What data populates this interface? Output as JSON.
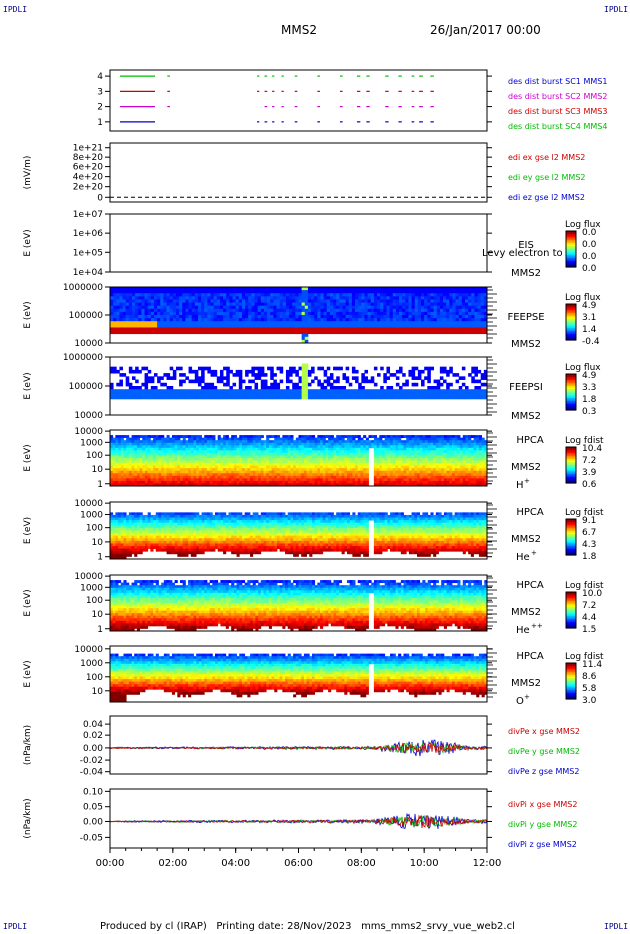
{
  "corner_label": "IPDLI",
  "header": {
    "mission": "MMS2",
    "date": "26/Jan/2017 00:00"
  },
  "footer": {
    "produced_by": "Produced by cl (IRAP)",
    "printing_date": "Printing date: 28/Nov/2023",
    "filename": "mms_mms2_srvy_vue_web2.cl"
  },
  "time_axis": [
    "00:00",
    "02:00",
    "04:00",
    "06:00",
    "08:00",
    "10:00",
    "12:00"
  ],
  "chart_data": [
    {
      "type": "scatter",
      "panel": "burst",
      "yticks": [
        "4",
        "3",
        "2",
        "1"
      ],
      "legend": [
        {
          "label": "des dist burst SC1 MMS1",
          "color": "#0000cc"
        },
        {
          "label": "des dist burst SC2 MMS2",
          "color": "#cc00cc"
        },
        {
          "label": "des dist burst SC3 MMS3",
          "color": "#cc0000"
        },
        {
          "label": "des dist burst SC4 MMS4",
          "color": "#00bb00"
        }
      ],
      "line_colors": [
        "#00bb00",
        "#cc0000",
        "#cc00cc",
        "#0000cc"
      ]
    },
    {
      "type": "line",
      "panel": "edi",
      "ylabel": "(mV/m)",
      "yticks": [
        "1e+21",
        "8e+20",
        "6e+20",
        "4e+20",
        "2e+20",
        "0"
      ],
      "legend": [
        {
          "label": "edi ex gse l2 MMS2",
          "color": "#cc0000"
        },
        {
          "label": "edi ey gse l2 MMS2",
          "color": "#00bb00"
        },
        {
          "label": "edi ez gse l2 MMS2",
          "color": "#0000cc"
        }
      ]
    },
    {
      "type": "heatmap",
      "panel": "eis",
      "ylabel": "E (eV)",
      "yticks": [
        "1e+07",
        "1e+06",
        "1e+05",
        "1e+04"
      ],
      "instrument": "EIS",
      "spacecraft": "MMS2",
      "overlay": "Levy electron to",
      "cbar_title": "Log flux",
      "cbar_ticks": [
        "0.0",
        "0.0",
        "0.0",
        "0.0"
      ]
    },
    {
      "type": "heatmap",
      "panel": "feepse",
      "ylabel": "E (eV)",
      "yticks": [
        "1000000",
        "100000",
        "10000"
      ],
      "instrument": "FEEPSE",
      "spacecraft": "MMS2",
      "cbar_title": "Log flux",
      "cbar_ticks": [
        "4.9",
        "3.1",
        "1.4",
        "-0.4"
      ]
    },
    {
      "type": "heatmap",
      "panel": "feepsi",
      "ylabel": "E (eV)",
      "yticks": [
        "1000000",
        "100000",
        "10000"
      ],
      "instrument": "FEEPSI",
      "spacecraft": "MMS2",
      "cbar_title": "Log flux",
      "cbar_ticks": [
        "4.9",
        "3.3",
        "1.8",
        "0.3"
      ]
    },
    {
      "type": "heatmap",
      "panel": "hpca_h",
      "ylabel": "E (eV)",
      "yticks": [
        "10000",
        "1000",
        "100",
        "10",
        "1"
      ],
      "instrument": "HPCA",
      "spacecraft": "MMS2",
      "species": "H",
      "charge": "+",
      "cbar_title": "Log fdist",
      "cbar_ticks": [
        "10.4",
        "7.2",
        "3.9",
        "0.6"
      ]
    },
    {
      "type": "heatmap",
      "panel": "hpca_he",
      "ylabel": "E (eV)",
      "yticks": [
        "10000",
        "1000",
        "100",
        "10",
        "1"
      ],
      "instrument": "HPCA",
      "spacecraft": "MMS2",
      "species": "He",
      "charge": "+",
      "cbar_title": "Log fdist",
      "cbar_ticks": [
        "9.1",
        "6.7",
        "4.3",
        "1.8"
      ]
    },
    {
      "type": "heatmap",
      "panel": "hpca_hepp",
      "ylabel": "E (eV)",
      "yticks": [
        "10000",
        "1000",
        "100",
        "10",
        "1"
      ],
      "instrument": "HPCA",
      "spacecraft": "MMS2",
      "species": "He",
      "charge": "++",
      "cbar_title": "Log fdist",
      "cbar_ticks": [
        "10.0",
        "7.2",
        "4.4",
        "1.5"
      ]
    },
    {
      "type": "heatmap",
      "panel": "hpca_o",
      "ylabel": "E (eV)",
      "yticks": [
        "10000",
        "1000",
        "100",
        "10"
      ],
      "instrument": "HPCA",
      "spacecraft": "MMS2",
      "species": "O",
      "charge": "+",
      "cbar_title": "Log fdist",
      "cbar_ticks": [
        "11.4",
        "8.6",
        "5.8",
        "3.0"
      ]
    },
    {
      "type": "line",
      "panel": "divpe",
      "ylabel": "(nPa/km)",
      "yticks": [
        "0.04",
        "0.02",
        "0.00",
        "-0.02",
        "-0.04"
      ],
      "legend": [
        {
          "label": "divPe x gse MMS2",
          "color": "#cc0000"
        },
        {
          "label": "divPe y gse MMS2",
          "color": "#00bb00"
        },
        {
          "label": "divPe z gse MMS2",
          "color": "#0000cc"
        }
      ]
    },
    {
      "type": "line",
      "panel": "divpi",
      "ylabel": "(nPa/km)",
      "yticks": [
        "0.10",
        "0.05",
        "0.00",
        "-0.05"
      ],
      "legend": [
        {
          "label": "divPi x gse MMS2",
          "color": "#cc0000"
        },
        {
          "label": "divPi y gse MMS2",
          "color": "#00bb00"
        },
        {
          "label": "divPi z gse MMS2",
          "color": "#0000cc"
        }
      ]
    }
  ]
}
